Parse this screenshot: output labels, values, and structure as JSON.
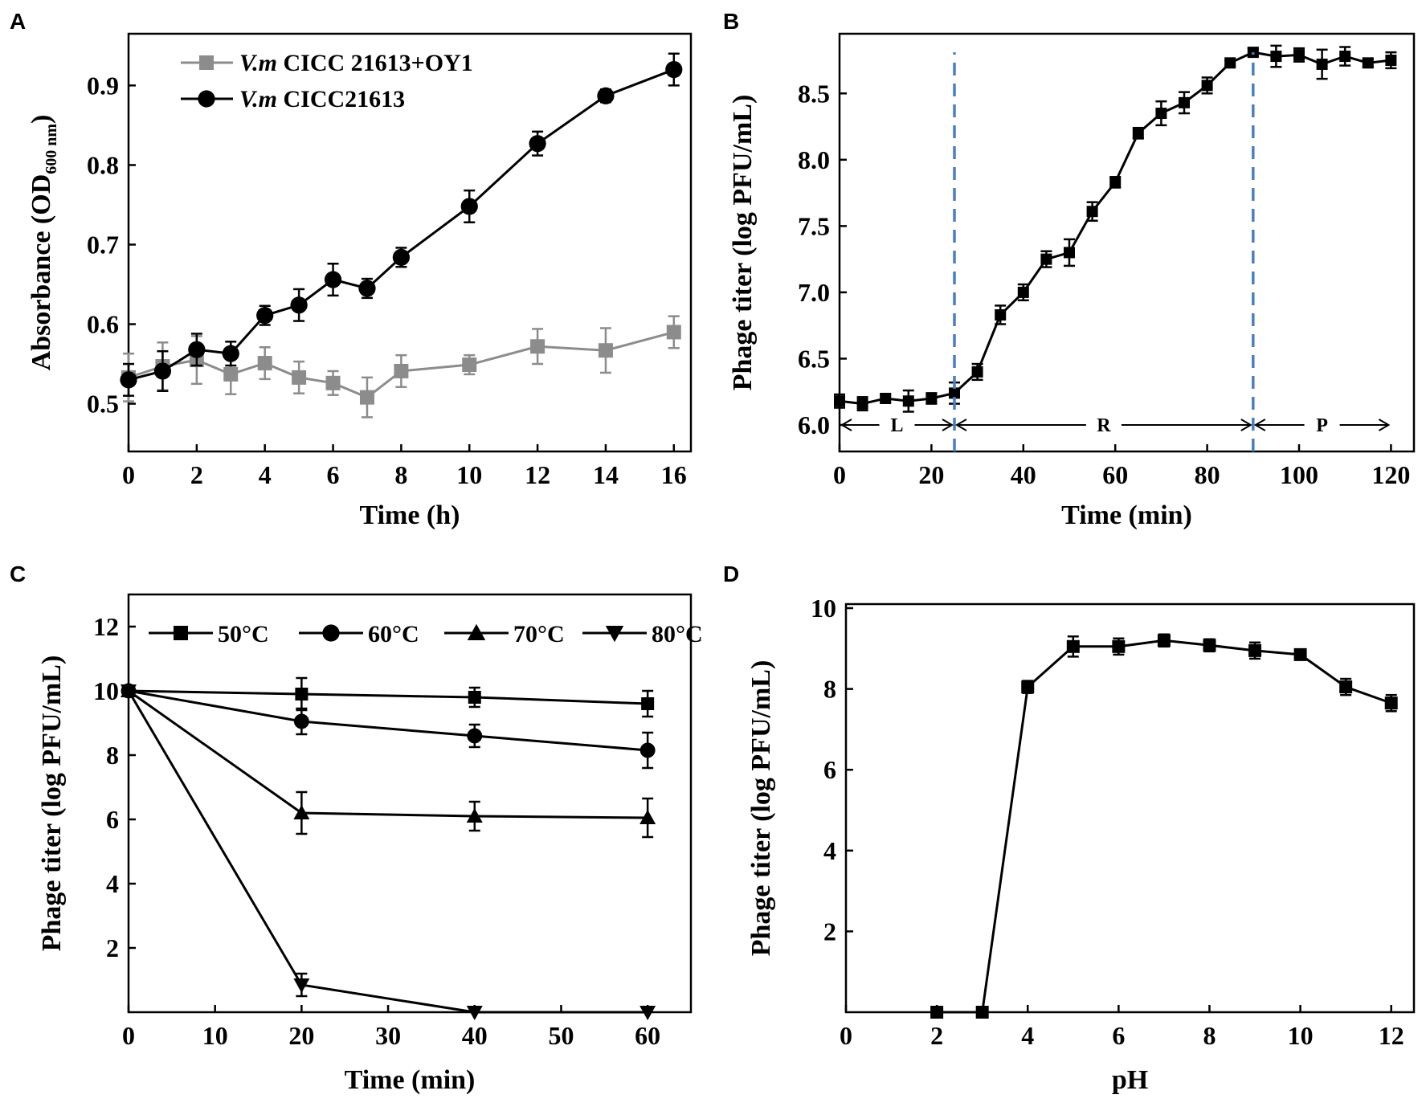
{
  "figure": {
    "panels": [
      "A",
      "B",
      "C",
      "D"
    ]
  },
  "chart_data": [
    {
      "panel": "A",
      "type": "line",
      "xlabel": "Time (h)",
      "ylabel_main": "Absorbance (OD",
      "ylabel_sub": "600 nm",
      "ylabel_end": ")",
      "xlim": [
        0,
        16.5
      ],
      "ylim": [
        0.44,
        0.965
      ],
      "xticks": [
        0,
        2,
        4,
        6,
        8,
        10,
        12,
        14,
        16
      ],
      "yticks": [
        0.5,
        0.6,
        0.7,
        0.8,
        0.9
      ],
      "series": [
        {
          "name_italic": "V.m",
          "name_rest": " CICC 21613+OY1",
          "marker": "square",
          "color": "#8c8c8c",
          "x": [
            0,
            1,
            2,
            3,
            4,
            5,
            6,
            7,
            8,
            10,
            12,
            14,
            16
          ],
          "y": [
            0.533,
            0.547,
            0.555,
            0.537,
            0.551,
            0.533,
            0.526,
            0.508,
            0.541,
            0.549,
            0.572,
            0.567,
            0.59
          ],
          "err": [
            0.03,
            0.03,
            0.03,
            0.025,
            0.02,
            0.02,
            0.015,
            0.025,
            0.02,
            0.012,
            0.022,
            0.028,
            0.02
          ]
        },
        {
          "name_italic": "V.m",
          "name_rest": " CICC21613",
          "marker": "circle",
          "color": "#000000",
          "x": [
            0,
            1,
            2,
            3,
            4,
            5,
            6,
            7,
            8,
            10,
            12,
            14,
            16
          ],
          "y": [
            0.53,
            0.541,
            0.568,
            0.563,
            0.611,
            0.624,
            0.656,
            0.645,
            0.684,
            0.748,
            0.827,
            0.887,
            0.92
          ],
          "err": [
            0.02,
            0.025,
            0.02,
            0.015,
            0.012,
            0.02,
            0.02,
            0.012,
            0.012,
            0.02,
            0.015,
            0.008,
            0.02
          ]
        }
      ]
    },
    {
      "panel": "B",
      "type": "line",
      "xlabel": "Time (min)",
      "ylabel": "Phage titer (log PFU/mL)",
      "xlim": [
        0,
        125
      ],
      "ylim": [
        5.8,
        8.95
      ],
      "xticks": [
        0,
        20,
        40,
        60,
        80,
        100,
        120
      ],
      "yticks": [
        6.0,
        6.5,
        7.0,
        7.5,
        8.0,
        8.5
      ],
      "ytick_labels": [
        "6.0",
        "6.5",
        "7.0",
        "7.5",
        "8.0",
        "8.5"
      ],
      "series": [
        {
          "name": "phage",
          "marker": "square",
          "color": "#000000",
          "x": [
            0,
            5,
            10,
            15,
            20,
            25,
            30,
            35,
            40,
            45,
            50,
            55,
            60,
            65,
            70,
            75,
            80,
            85,
            90,
            95,
            100,
            105,
            110,
            115,
            120
          ],
          "y": [
            6.18,
            6.16,
            6.2,
            6.18,
            6.2,
            6.24,
            6.4,
            6.83,
            7.0,
            7.25,
            7.3,
            7.61,
            7.83,
            8.2,
            8.35,
            8.43,
            8.56,
            8.73,
            8.81,
            8.78,
            8.79,
            8.72,
            8.78,
            8.73,
            8.75
          ],
          "err": [
            0.05,
            0.05,
            0.03,
            0.08,
            0.04,
            0.08,
            0.06,
            0.07,
            0.06,
            0.06,
            0.1,
            0.07,
            0.04,
            0.04,
            0.09,
            0.08,
            0.06,
            0.02,
            0.03,
            0.08,
            0.05,
            0.11,
            0.07,
            0.03,
            0.06
          ]
        }
      ],
      "phase_line_x": [
        25,
        90
      ],
      "phases": [
        {
          "label": "L",
          "x0": 0,
          "x1": 25
        },
        {
          "label": "R",
          "x0": 25,
          "x1": 90
        },
        {
          "label": "P",
          "x0": 90,
          "x1": 120
        }
      ]
    },
    {
      "panel": "C",
      "type": "line",
      "xlabel": "Time (min)",
      "ylabel": "Phage titer (log PFU/mL)",
      "xlim": [
        0,
        65
      ],
      "ylim": [
        0,
        13
      ],
      "xticks": [
        0,
        10,
        20,
        30,
        40,
        50,
        60
      ],
      "yticks": [
        2,
        4,
        6,
        8,
        10,
        12
      ],
      "series": [
        {
          "name": "50°C",
          "marker": "square",
          "color": "#000000",
          "x": [
            0,
            20,
            40,
            60
          ],
          "y": [
            10.0,
            9.9,
            9.8,
            9.6
          ],
          "err": [
            0.1,
            0.5,
            0.3,
            0.4
          ]
        },
        {
          "name": "60°C",
          "marker": "circle",
          "color": "#000000",
          "x": [
            0,
            20,
            40,
            60
          ],
          "y": [
            10.0,
            9.05,
            8.6,
            8.15
          ],
          "err": [
            0.1,
            0.4,
            0.35,
            0.55
          ]
        },
        {
          "name": "70°C",
          "marker": "triangle-up",
          "color": "#000000",
          "x": [
            0,
            20,
            40,
            60
          ],
          "y": [
            10.0,
            6.2,
            6.1,
            6.05
          ],
          "err": [
            0.1,
            0.65,
            0.45,
            0.6
          ]
        },
        {
          "name": "80°C",
          "marker": "triangle-down",
          "color": "#000000",
          "x": [
            0,
            20,
            40,
            60
          ],
          "y": [
            10.0,
            0.85,
            0.0,
            0.0
          ],
          "err": [
            0.1,
            0.35,
            0.0,
            0.0
          ]
        }
      ]
    },
    {
      "panel": "D",
      "type": "line",
      "xlabel": "pH",
      "ylabel": "Phage titer (log PFU/mL)",
      "xlim": [
        0,
        12.5
      ],
      "ylim": [
        0,
        10.1
      ],
      "xticks": [
        0,
        2,
        4,
        6,
        8,
        10,
        12
      ],
      "yticks": [
        2,
        4,
        6,
        8,
        10
      ],
      "series": [
        {
          "name": "phage",
          "marker": "square",
          "color": "#000000",
          "x": [
            2,
            3,
            4,
            5,
            6,
            7,
            8,
            9,
            10,
            11,
            12
          ],
          "y": [
            0.0,
            0.0,
            8.05,
            9.05,
            9.05,
            9.2,
            9.08,
            8.95,
            8.85,
            8.05,
            7.65
          ],
          "err": [
            0.0,
            0.0,
            0.15,
            0.25,
            0.2,
            0.15,
            0.15,
            0.2,
            0.12,
            0.2,
            0.2
          ]
        }
      ]
    }
  ]
}
